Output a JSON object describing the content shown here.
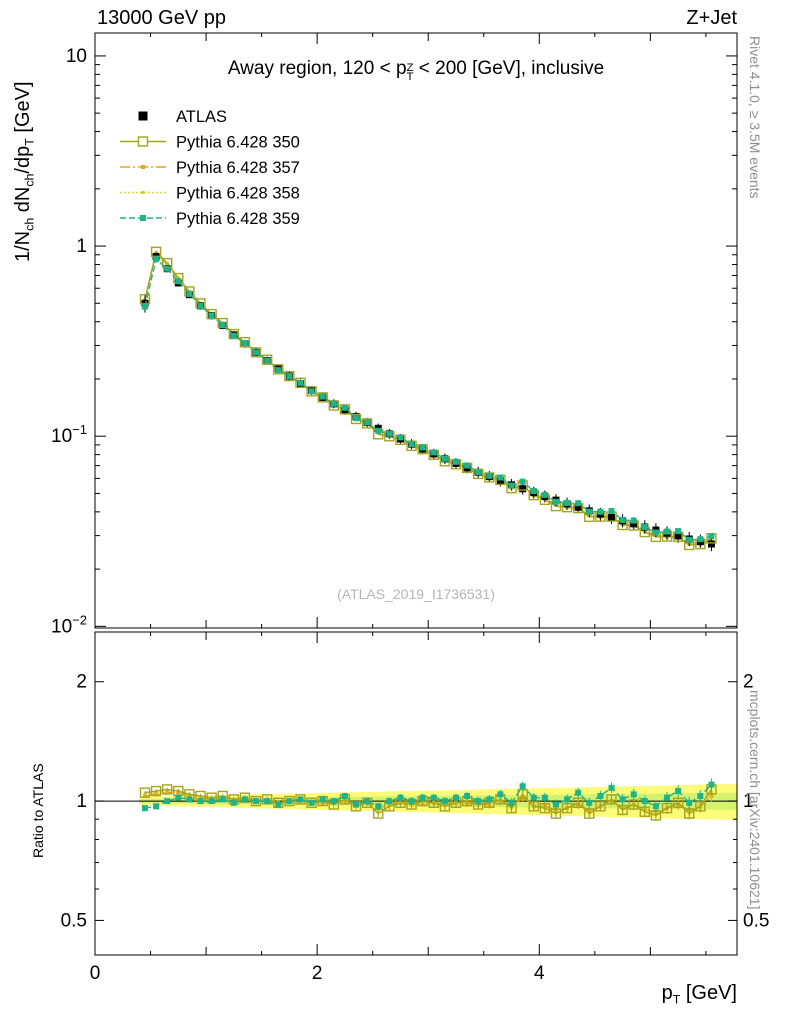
{
  "header": {
    "left": "13000 GeV pp",
    "right": "Z+Jet"
  },
  "labels": {
    "title_pre": "Away region, 120 < p",
    "title_sup": "Z",
    "title_sub": "T",
    "title_post": " < 200 [GeV], inclusive",
    "ylabel_parts": [
      "1/N",
      "ch",
      " dN",
      "ch",
      "/dp",
      "T",
      " [GeV]"
    ],
    "ratio_ylabel": "Ratio to ATLAS",
    "xlabel_p": "p",
    "xlabel_sub": "T",
    "xlabel_post": " [GeV]",
    "watermark": "(ATLAS_2019_I1736531)",
    "side_top": "Rivet 4.1.0, ≥ 3.5M events",
    "side_bottom": "mcplots.cern.ch [arXiv:2401.10621]"
  },
  "chart_data": {
    "type": "line",
    "title": "Away region, 120 < pTZ < 200 [GeV], inclusive",
    "xlabel": "pT [GeV]",
    "ylabel": "1/Nch dNch/dpT [GeV]",
    "ratio_label": "Ratio to ATLAS",
    "xlim": [
      0,
      5.78
    ],
    "ylim_main": [
      0.0098,
      13.2
    ],
    "ylim_ratio": [
      0.409,
      2.67
    ],
    "x": [
      0.45,
      0.55,
      0.65,
      0.75,
      0.85,
      0.95,
      1.05,
      1.15,
      1.25,
      1.35,
      1.45,
      1.55,
      1.65,
      1.75,
      1.85,
      1.95,
      2.05,
      2.15,
      2.25,
      2.35,
      2.45,
      2.55,
      2.65,
      2.75,
      2.85,
      2.95,
      3.05,
      3.15,
      3.25,
      3.35,
      3.45,
      3.55,
      3.65,
      3.75,
      3.85,
      3.95,
      4.05,
      4.15,
      4.25,
      4.35,
      4.45,
      4.55,
      4.65,
      4.75,
      4.85,
      4.95,
      5.05,
      5.15,
      5.25,
      5.35,
      5.45,
      5.55
    ],
    "atlas": {
      "label": "ATLAS",
      "color": "#000000",
      "marker": "filled-square",
      "msize": 7,
      "values": [
        0.5,
        0.88,
        0.76,
        0.64,
        0.555,
        0.485,
        0.43,
        0.382,
        0.341,
        0.306,
        0.276,
        0.25,
        0.227,
        0.207,
        0.189,
        0.174,
        0.16,
        0.148,
        0.137,
        0.127,
        0.118,
        0.11,
        0.103,
        0.0967,
        0.0908,
        0.0855,
        0.0806,
        0.0761,
        0.0719,
        0.0681,
        0.0646,
        0.0613,
        0.0583,
        0.0555,
        0.0529,
        0.0505,
        0.0482,
        0.0461,
        0.0441,
        0.0423,
        0.0405,
        0.0389,
        0.0374,
        0.0359,
        0.0346,
        0.0333,
        0.0321,
        0.0309,
        0.0299,
        0.0288,
        0.0279,
        0.0271
      ]
    },
    "series": [
      {
        "label": "Pythia 6.428 350",
        "color": "#a6a31f",
        "dash": "solid",
        "marker": "open-square",
        "msize": 9,
        "ratio": [
          1.05,
          1.06,
          1.07,
          1.06,
          1.04,
          1.03,
          1.02,
          1.03,
          1.01,
          1.02,
          1.0,
          1.01,
          0.99,
          1.0,
          1.01,
          0.99,
          1.0,
          0.98,
          1.01,
          0.97,
          0.99,
          0.93,
          0.97,
          0.99,
          0.98,
          1.0,
          0.99,
          0.97,
          0.99,
          1.0,
          0.98,
          0.99,
          1.01,
          0.96,
          1.04,
          0.97,
          0.96,
          0.93,
          0.96,
          0.99,
          0.93,
          0.97,
          1.01,
          0.95,
          0.98,
          0.94,
          0.92,
          0.96,
          0.99,
          0.93,
          0.97,
          1.07
        ]
      },
      {
        "label": "Pythia 6.428 357",
        "color": "#e2a51b",
        "dash": "dashdot",
        "marker": "small-square",
        "msize": 4,
        "ratio": [
          1.03,
          1.04,
          1.05,
          1.05,
          1.03,
          1.02,
          1.01,
          1.02,
          1.0,
          1.01,
          1.0,
          1.0,
          0.99,
          1.0,
          1.0,
          0.99,
          0.99,
          0.99,
          1.0,
          0.98,
          0.99,
          0.96,
          0.98,
          0.99,
          0.98,
          0.99,
          0.99,
          0.98,
          0.99,
          0.99,
          0.98,
          0.98,
          1.0,
          0.97,
          1.02,
          0.97,
          0.97,
          0.95,
          0.96,
          0.98,
          0.95,
          0.97,
          1.0,
          0.96,
          0.98,
          0.95,
          0.94,
          0.96,
          0.98,
          0.95,
          0.97,
          1.03
        ]
      },
      {
        "label": "Pythia 6.428 358",
        "color": "#d6ca1a",
        "dash": "dot",
        "marker": "small-square",
        "msize": 3,
        "ratio": [
          1.04,
          1.05,
          1.06,
          1.06,
          1.04,
          1.02,
          1.01,
          1.02,
          1.01,
          1.01,
          1.0,
          1.0,
          0.99,
          1.0,
          1.0,
          0.99,
          1.0,
          0.99,
          1.0,
          0.98,
          0.99,
          0.95,
          0.98,
          0.99,
          0.98,
          0.99,
          0.99,
          0.98,
          0.99,
          1.0,
          0.98,
          0.99,
          1.0,
          0.96,
          1.03,
          0.97,
          0.96,
          0.94,
          0.96,
          0.99,
          0.94,
          0.97,
          1.0,
          0.96,
          0.98,
          0.95,
          0.93,
          0.96,
          0.99,
          0.94,
          0.97,
          1.05
        ]
      },
      {
        "label": "Pythia 6.428 359",
        "color": "#1eb489",
        "dash": "dash",
        "marker": "filled-square",
        "msize": 6,
        "ratio": [
          0.96,
          0.97,
          1.0,
          1.02,
          1.01,
          1.0,
          1.0,
          1.01,
          0.99,
          1.01,
          1.0,
          1.0,
          0.98,
          1.0,
          1.01,
          0.99,
          1.01,
          1.0,
          1.03,
          0.98,
          1.0,
          0.97,
          1.0,
          1.02,
          1.0,
          1.02,
          1.02,
          1.0,
          1.02,
          1.03,
          1.0,
          1.01,
          1.04,
          0.99,
          1.09,
          1.02,
          1.02,
          0.98,
          1.01,
          1.05,
          0.99,
          1.03,
          1.08,
          1.01,
          1.04,
          1.0,
          0.97,
          1.02,
          1.06,
          0.99,
          1.03,
          1.1
        ]
      }
    ],
    "band": {
      "color": "#fbfb4e",
      "inner_color": "#cdf06b",
      "half_width_start": 0.025,
      "half_width_end": 0.105,
      "inner_start": 0.012,
      "inner_end": 0.05
    },
    "xticks_major": [
      {
        "v": 0,
        "label": "0"
      },
      {
        "v": 2,
        "label": "2"
      },
      {
        "v": 4,
        "label": "4"
      }
    ],
    "yticks_main": [
      {
        "v": 10,
        "base": "10",
        "exp": ""
      },
      {
        "v": 1,
        "base": "1",
        "exp": ""
      },
      {
        "v": 0.1,
        "base": "10",
        "exp": "−1"
      },
      {
        "v": 0.01,
        "base": "10",
        "exp": "−2"
      }
    ],
    "yticks_ratio": [
      {
        "v": 2,
        "label": "2"
      },
      {
        "v": 1,
        "label": "1"
      },
      {
        "v": 0.5,
        "label": "0.5"
      }
    ],
    "legend_position": "top-left",
    "grid": false
  }
}
